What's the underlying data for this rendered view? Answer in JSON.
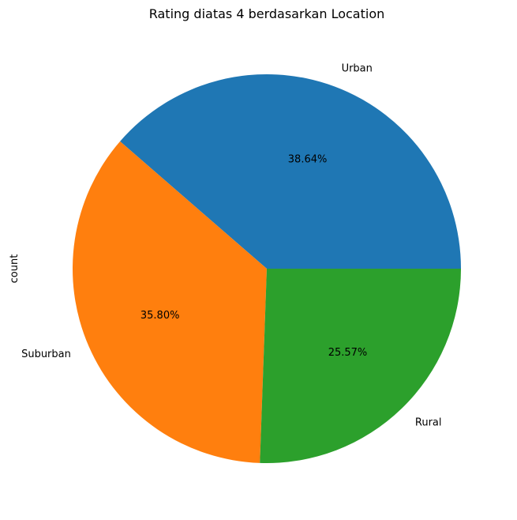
{
  "chart_data": {
    "type": "pie",
    "title": "Rating diatas 4 berdasarkan Location",
    "ylabel": "count",
    "categories": [
      "Urban",
      "Suburban",
      "Rural"
    ],
    "values": [
      38.64,
      35.8,
      25.57
    ],
    "value_labels": [
      "38.64%",
      "35.80%",
      "25.57%"
    ],
    "colors": [
      "#1f77b4",
      "#ff7f0e",
      "#2ca02c"
    ],
    "start_angle_deg": 0,
    "direction": "counterclockwise"
  }
}
